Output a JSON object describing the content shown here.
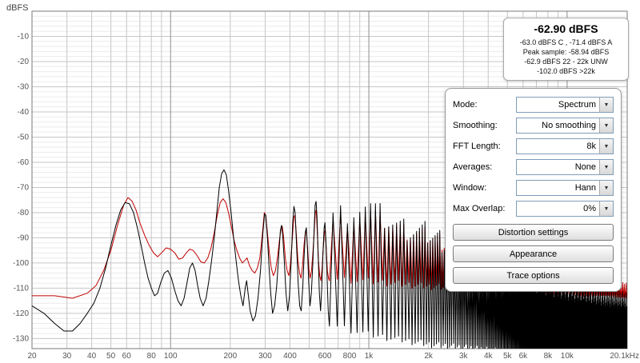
{
  "readout": {
    "main": "-62.90 dBFS",
    "line1": "-63.0 dBFS C , -71.4 dBFS A",
    "line2": "Peak sample: -58.94 dBFS",
    "line3": "-62.9 dBFS 22 - 22k UNW",
    "line4": "-102.0 dBFS >22k"
  },
  "controls": {
    "rows": [
      {
        "label": "Mode:",
        "value": "Spectrum"
      },
      {
        "label": "Smoothing:",
        "value": "No smoothing"
      },
      {
        "label": "FFT Length:",
        "value": "8k"
      },
      {
        "label": "Averages:",
        "value": "None"
      },
      {
        "label": "Window:",
        "value": "Hann"
      },
      {
        "label": "Max Overlap:",
        "value": "0%"
      }
    ],
    "buttons": [
      "Distortion settings",
      "Appearance",
      "Trace options"
    ]
  },
  "chart_data": {
    "type": "line",
    "title": "",
    "y_axis": {
      "unit": "dBFS",
      "min": -134,
      "max": 0,
      "major_step": 10,
      "minor_step": 2,
      "labels": [
        -10,
        -20,
        -30,
        -40,
        -50,
        -60,
        -70,
        -80,
        -90,
        -100,
        -110,
        -120,
        -130
      ]
    },
    "x_axis": {
      "scale": "log",
      "min": 20,
      "max": 20100,
      "grid_minor": [
        30,
        40,
        50,
        60,
        70,
        80,
        90,
        200,
        300,
        400,
        500,
        600,
        700,
        800,
        900,
        2000,
        3000,
        4000,
        5000,
        6000,
        7000,
        8000,
        9000
      ],
      "grid_decade": [
        100,
        1000,
        10000
      ],
      "ticks": [
        {
          "f": 20,
          "label": "20"
        },
        {
          "f": 30,
          "label": "30"
        },
        {
          "f": 40,
          "label": "40"
        },
        {
          "f": 50,
          "label": "50"
        },
        {
          "f": 60,
          "label": "60"
        },
        {
          "f": 80,
          "label": "80"
        },
        {
          "f": 100,
          "label": "100"
        },
        {
          "f": 200,
          "label": "200"
        },
        {
          "f": 300,
          "label": "300"
        },
        {
          "f": 400,
          "label": "400"
        },
        {
          "f": 600,
          "label": "600"
        },
        {
          "f": 800,
          "label": "800"
        },
        {
          "f": 1000,
          "label": "1k"
        },
        {
          "f": 2000,
          "label": "2k"
        },
        {
          "f": 3000,
          "label": "3k"
        },
        {
          "f": 4000,
          "label": "4k"
        },
        {
          "f": 5000,
          "label": "5k"
        },
        {
          "f": 6000,
          "label": "6k"
        },
        {
          "f": 8000,
          "label": "8k"
        },
        {
          "f": 10000,
          "label": "10k"
        },
        {
          "f": 20100,
          "label": "20.1kHz",
          "align": "end"
        }
      ]
    },
    "series": [
      {
        "name": "red",
        "color": "#c00000",
        "width": 1,
        "points": [
          [
            20,
            -113
          ],
          [
            26,
            -113
          ],
          [
            32,
            -114
          ],
          [
            38,
            -112
          ],
          [
            42,
            -109
          ],
          [
            46,
            -103
          ],
          [
            50,
            -95
          ],
          [
            54,
            -85
          ],
          [
            58,
            -77
          ],
          [
            61,
            -74
          ],
          [
            64,
            -75.5
          ],
          [
            67,
            -79
          ],
          [
            70,
            -84
          ],
          [
            74,
            -89
          ],
          [
            78,
            -93
          ],
          [
            82,
            -96
          ],
          [
            86,
            -97.5
          ],
          [
            90,
            -96
          ],
          [
            95,
            -94
          ],
          [
            100,
            -94.5
          ],
          [
            105,
            -96
          ],
          [
            110,
            -98.5
          ],
          [
            115,
            -98
          ],
          [
            120,
            -96
          ],
          [
            125,
            -94.5
          ],
          [
            130,
            -95
          ],
          [
            136,
            -97
          ],
          [
            142,
            -99.5
          ],
          [
            148,
            -100
          ],
          [
            154,
            -98
          ],
          [
            160,
            -94
          ],
          [
            166,
            -88
          ],
          [
            172,
            -81
          ],
          [
            178,
            -76
          ],
          [
            184,
            -74.5
          ],
          [
            190,
            -76
          ],
          [
            196,
            -80
          ],
          [
            202,
            -85
          ],
          [
            209,
            -91
          ],
          [
            216,
            -95
          ],
          [
            223,
            -98
          ],
          [
            230,
            -100
          ],
          [
            237,
            -99
          ],
          [
            243,
            -98
          ],
          [
            250,
            -101
          ],
          [
            258,
            -103
          ],
          [
            266,
            -104
          ],
          [
            274,
            -102
          ],
          [
            282,
            -98
          ],
          [
            290,
            -89
          ],
          [
            297,
            -80
          ],
          [
            302,
            -81
          ],
          [
            308,
            -88
          ],
          [
            315,
            -96
          ],
          [
            322,
            -102
          ],
          [
            330,
            -105
          ],
          [
            338,
            -103
          ],
          [
            346,
            -98
          ],
          [
            354,
            -91
          ],
          [
            361,
            -86
          ],
          [
            366,
            -85.5
          ],
          [
            372,
            -90
          ],
          [
            379,
            -98
          ],
          [
            387,
            -103
          ],
          [
            395,
            -105
          ],
          [
            403,
            -100
          ],
          [
            411,
            -91
          ],
          [
            418,
            -82
          ],
          [
            424,
            -81
          ],
          [
            431,
            -89
          ],
          [
            439,
            -99
          ],
          [
            447,
            -104
          ],
          [
            455,
            -106
          ],
          [
            463,
            -101
          ],
          [
            471,
            -93
          ],
          [
            478,
            -88
          ],
          [
            484,
            -87
          ],
          [
            491,
            -94
          ],
          [
            498,
            -102
          ],
          [
            506,
            -106
          ],
          [
            514,
            -103
          ],
          [
            522,
            -96
          ],
          [
            530,
            -88
          ],
          [
            537,
            -80
          ],
          [
            543,
            -79
          ],
          [
            549,
            -87
          ],
          [
            557,
            -99
          ],
          [
            565,
            -105
          ],
          [
            573,
            -107
          ],
          [
            581,
            -102
          ],
          [
            589,
            -94
          ],
          [
            597,
            -88
          ],
          [
            603,
            -87
          ],
          [
            610,
            -94
          ],
          [
            618,
            -103
          ],
          [
            626,
            -106
          ]
        ],
        "comb": {
          "start": 660,
          "end": 20040,
          "spacing": 60,
          "jitter": 7,
          "peak_env": [
            [
              660,
              -84
            ],
            [
              1000,
              -80
            ],
            [
              1500,
              -87
            ],
            [
              2000,
              -89
            ],
            [
              3000,
              -95
            ],
            [
              5000,
              -100
            ],
            [
              8000,
              -105
            ],
            [
              12000,
              -108
            ],
            [
              20040,
              -111
            ]
          ],
          "floor_env": [
            [
              660,
              -106
            ],
            [
              1000,
              -107
            ],
            [
              2000,
              -109
            ],
            [
              5000,
              -111
            ],
            [
              20040,
              -112
            ]
          ]
        }
      },
      {
        "name": "black",
        "color": "#000000",
        "width": 1,
        "points": [
          [
            20,
            -117
          ],
          [
            23,
            -120
          ],
          [
            26,
            -124
          ],
          [
            29,
            -127
          ],
          [
            32,
            -127
          ],
          [
            35,
            -124
          ],
          [
            38,
            -120
          ],
          [
            41,
            -116
          ],
          [
            44,
            -110
          ],
          [
            47,
            -102
          ],
          [
            50,
            -93
          ],
          [
            53,
            -85
          ],
          [
            56,
            -79
          ],
          [
            59,
            -76
          ],
          [
            62,
            -76.5
          ],
          [
            65,
            -80
          ],
          [
            68,
            -86
          ],
          [
            71,
            -93
          ],
          [
            74,
            -100
          ],
          [
            77,
            -106
          ],
          [
            80,
            -110
          ],
          [
            83,
            -113
          ],
          [
            86,
            -112
          ],
          [
            89,
            -108
          ],
          [
            93,
            -104
          ],
          [
            97,
            -103
          ],
          [
            101,
            -106
          ],
          [
            105,
            -111
          ],
          [
            109,
            -115
          ],
          [
            113,
            -117
          ],
          [
            117,
            -114
          ],
          [
            121,
            -108
          ],
          [
            125,
            -102
          ],
          [
            129,
            -100
          ],
          [
            133,
            -103
          ],
          [
            137,
            -109
          ],
          [
            141,
            -114
          ],
          [
            146,
            -117
          ],
          [
            151,
            -114
          ],
          [
            156,
            -107
          ],
          [
            161,
            -99
          ],
          [
            166,
            -90
          ],
          [
            171,
            -80
          ],
          [
            176,
            -70
          ],
          [
            181,
            -64.5
          ],
          [
            186,
            -63
          ],
          [
            191,
            -65
          ],
          [
            196,
            -71
          ],
          [
            202,
            -80
          ],
          [
            208,
            -90
          ],
          [
            214,
            -99
          ],
          [
            220,
            -107
          ],
          [
            226,
            -113
          ],
          [
            232,
            -117
          ],
          [
            238,
            -110
          ],
          [
            242,
            -107
          ],
          [
            246,
            -112
          ],
          [
            252,
            -119
          ],
          [
            260,
            -123
          ],
          [
            268,
            -121
          ],
          [
            276,
            -114
          ],
          [
            284,
            -103
          ],
          [
            292,
            -88
          ],
          [
            298,
            -80.5
          ],
          [
            302,
            -81
          ],
          [
            308,
            -90
          ],
          [
            314,
            -102
          ],
          [
            320,
            -112
          ],
          [
            327,
            -120
          ],
          [
            335,
            -117
          ],
          [
            343,
            -109
          ],
          [
            351,
            -97
          ],
          [
            358,
            -87
          ],
          [
            363,
            -85
          ],
          [
            368,
            -89
          ],
          [
            375,
            -100
          ],
          [
            382,
            -112
          ],
          [
            390,
            -119
          ],
          [
            398,
            -113
          ],
          [
            406,
            -99
          ],
          [
            413,
            -84
          ],
          [
            419,
            -77.5
          ],
          [
            425,
            -80
          ],
          [
            432,
            -93
          ],
          [
            440,
            -108
          ],
          [
            448,
            -117
          ],
          [
            456,
            -119
          ],
          [
            464,
            -110
          ],
          [
            472,
            -97
          ],
          [
            479,
            -87.5
          ],
          [
            484,
            -86
          ],
          [
            490,
            -94
          ],
          [
            497,
            -107
          ],
          [
            505,
            -117
          ],
          [
            513,
            -112
          ],
          [
            521,
            -101
          ],
          [
            529,
            -88
          ],
          [
            536,
            -77
          ],
          [
            542,
            -75.5
          ],
          [
            548,
            -82
          ],
          [
            555,
            -97
          ],
          [
            563,
            -112
          ],
          [
            571,
            -119
          ],
          [
            579,
            -110
          ],
          [
            587,
            -96
          ],
          [
            595,
            -86
          ],
          [
            601,
            -84
          ],
          [
            608,
            -92
          ],
          [
            616,
            -106
          ],
          [
            624,
            -119
          ]
        ],
        "comb": {
          "start": 660,
          "end": 20040,
          "spacing": 60,
          "jitter": 10,
          "peak_env": [
            [
              660,
              -82
            ],
            [
              800,
              -79
            ],
            [
              1000,
              -77
            ],
            [
              1200,
              -82
            ],
            [
              1500,
              -86
            ],
            [
              2000,
              -88
            ],
            [
              2600,
              -93
            ],
            [
              3500,
              -98
            ],
            [
              5000,
              -103
            ],
            [
              7000,
              -107
            ],
            [
              10000,
              -110
            ],
            [
              14000,
              -113
            ],
            [
              20040,
              -116
            ]
          ],
          "floor_env": [
            [
              660,
              -124
            ],
            [
              1000,
              -128
            ],
            [
              2000,
              -132
            ],
            [
              5000,
              -135
            ],
            [
              20040,
              -136
            ]
          ]
        }
      }
    ]
  }
}
